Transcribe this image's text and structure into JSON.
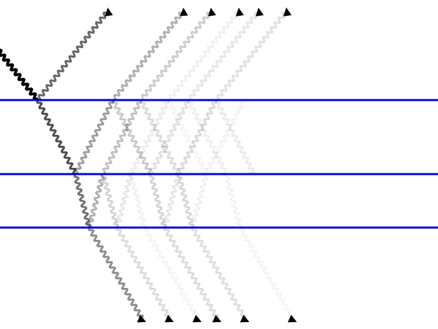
{
  "diagram": {
    "interface_color": "#0000dd",
    "ray_color": "#000000",
    "interface_count": 3,
    "style": "wavy light rays undergoing multiple reflection and transmission between layers, fading in intensity"
  }
}
